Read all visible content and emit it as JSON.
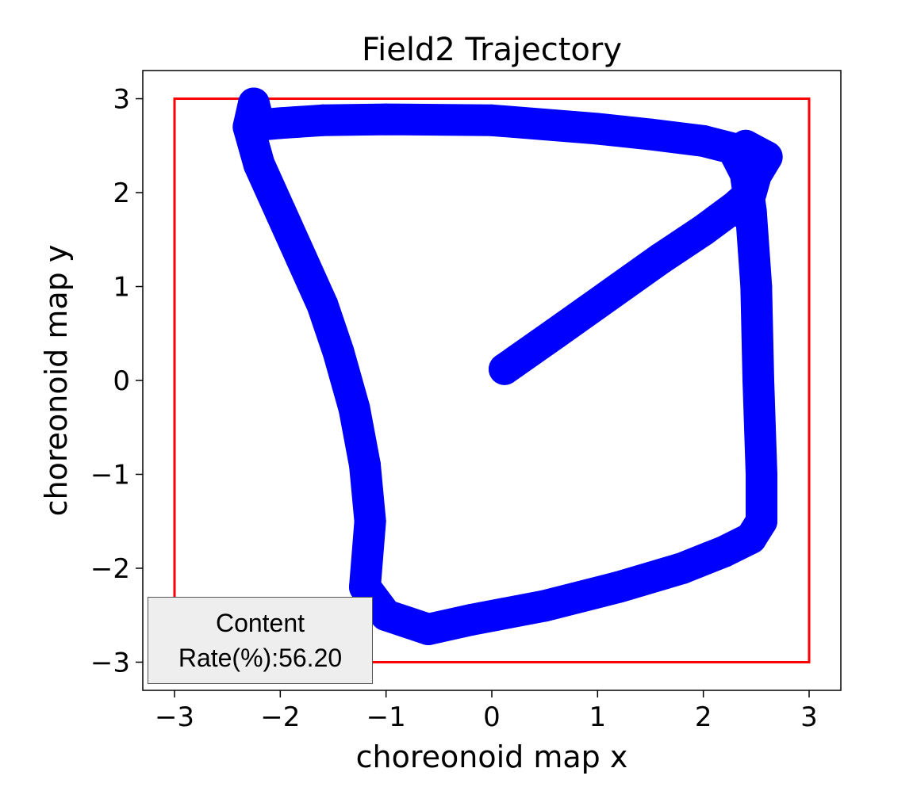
{
  "chart_data": {
    "type": "line",
    "title": "Field2 Trajectory",
    "xlabel": "choreonoid map x",
    "ylabel": "choreonoid map y",
    "xlim": [
      -3.3,
      3.3
    ],
    "ylim": [
      -3.3,
      3.3
    ],
    "xticks": [
      -3,
      -2,
      -1,
      0,
      1,
      2,
      3
    ],
    "yticks": [
      -3,
      -2,
      -1,
      0,
      1,
      2,
      3
    ],
    "xtick_labels": [
      "−3",
      "−2",
      "−1",
      "0",
      "1",
      "2",
      "3"
    ],
    "ytick_labels": [
      "−3",
      "−2",
      "−1",
      "0",
      "1",
      "2",
      "3"
    ],
    "grid": false,
    "boundary": {
      "color": "#ff0000",
      "x": [
        -3,
        3,
        3,
        -3,
        -3
      ],
      "y": [
        -3,
        -3,
        3,
        3,
        -3
      ]
    },
    "series": [
      {
        "color": "#0000ff",
        "x": [
          0.12,
          0.6,
          1.1,
          1.6,
          2.0,
          2.3,
          2.45,
          2.5,
          2.45,
          2.35,
          2.0,
          1.5,
          1.0,
          0.0,
          -1.0,
          -1.6,
          -2.0,
          -2.2,
          -2.25,
          -2.3,
          -2.2,
          -2.0,
          -1.8,
          -1.6,
          -1.45,
          -1.3,
          -1.2,
          -1.15,
          -1.2,
          -1.0,
          -0.6,
          -0.2,
          0.5,
          1.2,
          1.8,
          2.2,
          2.45,
          2.55,
          2.55,
          2.52,
          2.5,
          2.45,
          2.4,
          2.3,
          2.4,
          2.6,
          2.45,
          2.35
        ],
        "y": [
          0.12,
          0.5,
          0.9,
          1.3,
          1.6,
          1.85,
          2.0,
          2.2,
          2.35,
          2.45,
          2.55,
          2.62,
          2.68,
          2.77,
          2.78,
          2.77,
          2.74,
          2.72,
          2.95,
          2.7,
          2.3,
          1.8,
          1.3,
          0.8,
          0.3,
          -0.3,
          -0.9,
          -1.5,
          -2.2,
          -2.5,
          -2.65,
          -2.55,
          -2.4,
          -2.2,
          -2.0,
          -1.82,
          -1.68,
          -1.5,
          -1.0,
          0.0,
          1.0,
          1.8,
          2.2,
          2.42,
          2.5,
          2.38,
          2.1,
          1.8
        ]
      }
    ],
    "annotation": {
      "line1": "Content",
      "line2": "Rate(%):56.20",
      "placement": "lower-left"
    }
  }
}
